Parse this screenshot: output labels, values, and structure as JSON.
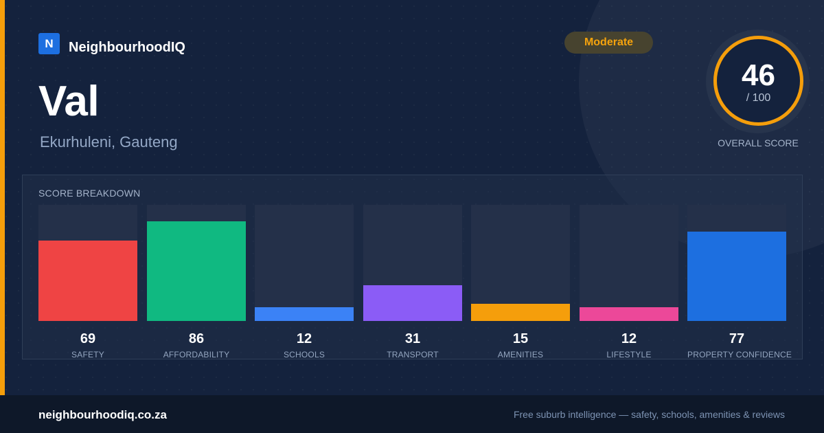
{
  "brand": {
    "logo_letter": "N",
    "name": "NeighbourhoodIQ"
  },
  "suburb": {
    "name": "Val",
    "location": "Ekurhuleni, Gauteng"
  },
  "rating": {
    "label": "Moderate",
    "color": "#f59e0b"
  },
  "overall": {
    "score": "46",
    "max": "/ 100",
    "label": "OVERALL SCORE"
  },
  "breakdown": {
    "title": "SCORE BREAKDOWN",
    "max_value": 100,
    "items": [
      {
        "label": "SAFETY",
        "value": 69,
        "color": "#ef4444"
      },
      {
        "label": "AFFORDABILITY",
        "value": 86,
        "color": "#10b981"
      },
      {
        "label": "SCHOOLS",
        "value": 12,
        "color": "#3b82f6"
      },
      {
        "label": "TRANSPORT",
        "value": 31,
        "color": "#8b5cf6"
      },
      {
        "label": "AMENITIES",
        "value": 15,
        "color": "#f59e0b"
      },
      {
        "label": "LIFESTYLE",
        "value": 12,
        "color": "#ec4899"
      },
      {
        "label": "PROPERTY CONFIDENCE",
        "value": 77,
        "color": "#1d6fe0"
      }
    ]
  },
  "footer": {
    "url": "neighbourhoodiq.co.za",
    "tagline": "Free suburb intelligence — safety, schools, amenities & reviews"
  }
}
